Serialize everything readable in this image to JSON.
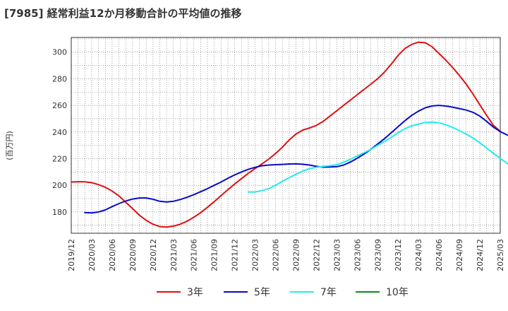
{
  "chart_data": {
    "type": "line",
    "title": "[7985]  経常利益12か月移動合計の平均値の推移",
    "ylabel": "(百万円)",
    "xlabel": "",
    "ylim": [
      164,
      311
    ],
    "yticks": [
      180,
      200,
      220,
      240,
      260,
      280,
      300
    ],
    "x_tick_labels": [
      "2019/12",
      "2020/03",
      "2020/06",
      "2020/09",
      "2020/12",
      "2021/03",
      "2021/06",
      "2021/09",
      "2021/12",
      "2022/03",
      "2022/06",
      "2022/09",
      "2022/12",
      "2023/03",
      "2023/06",
      "2023/09",
      "2023/12",
      "2024/03",
      "2024/06",
      "2024/09",
      "2024/12",
      "2025/03"
    ],
    "x_start": "2019/12",
    "grid": true,
    "legend_position": "bottom",
    "series": [
      {
        "name": "3年",
        "color": "#dd1111",
        "start": "2019/12",
        "values": [
          202.5,
          202.7,
          202.6,
          202,
          200.5,
          198.5,
          195.7,
          192,
          187.3,
          182.5,
          177.6,
          173.7,
          170.8,
          169,
          168.6,
          169.3,
          170.8,
          173,
          176,
          179.5,
          183.5,
          187.8,
          192.3,
          196.7,
          201,
          205,
          209,
          212.6,
          216,
          219.7,
          223.8,
          228.6,
          234,
          238.5,
          241.5,
          243,
          245,
          248,
          252,
          256,
          260,
          264,
          268,
          272,
          276,
          280,
          285,
          291,
          297.5,
          302.7,
          305.8,
          307.5,
          307,
          304,
          299,
          294,
          288.5,
          282.5,
          276,
          268.5,
          260.5,
          252.5,
          245,
          240.5
        ]
      },
      {
        "name": "5年",
        "color": "#0a0ac8",
        "start": "2020/02",
        "values": [
          179.5,
          179.3,
          180,
          181.5,
          184,
          186.3,
          188.2,
          189.7,
          190.5,
          190.5,
          189.5,
          188,
          187.5,
          188,
          189.3,
          191,
          193,
          195.2,
          197.5,
          200,
          202.5,
          205.3,
          207.8,
          210,
          212,
          213.5,
          214.7,
          215.2,
          215.5,
          215.7,
          216,
          216.1,
          215.8,
          215.2,
          214.2,
          213.6,
          213.7,
          214,
          215.2,
          217.5,
          220.3,
          223.5,
          227,
          231,
          235,
          239.5,
          244,
          248.5,
          252.5,
          255.7,
          258.2,
          259.6,
          260,
          259.5,
          258.7,
          257.6,
          256.5,
          254.8,
          252,
          248,
          243.7,
          240.3,
          237.8,
          236
        ]
      },
      {
        "name": "7年",
        "color": "#22ecec",
        "start": "2022/02",
        "values": [
          195,
          195,
          196,
          197.5,
          200,
          203,
          205.7,
          208.2,
          210.7,
          212.5,
          213.5,
          214.2,
          214.7,
          215.5,
          217.3,
          219.5,
          222,
          224.5,
          227,
          230,
          233,
          236,
          239.5,
          242.5,
          244.6,
          246,
          247.2,
          247.5,
          247,
          245.5,
          243.5,
          241,
          238.5,
          235.5,
          232,
          228,
          224,
          220.3,
          216.5,
          213
        ]
      },
      {
        "name": "10年",
        "color": "#118811",
        "start": "2019/12",
        "values": []
      }
    ]
  }
}
